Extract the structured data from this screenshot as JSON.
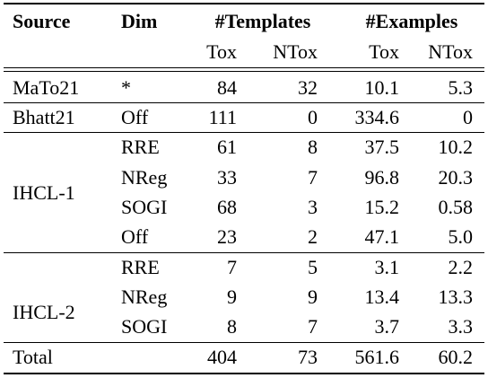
{
  "header": {
    "source": "Source",
    "dim": "Dim",
    "templates": "#Templates",
    "examples": "#Examples",
    "tox": "Tox",
    "ntox": "NTox"
  },
  "rows": [
    {
      "source": "MaTo21",
      "dim": "*",
      "t_tox": "84",
      "t_ntox": "32",
      "e_tox": "10.1",
      "e_ntox": "5.3"
    },
    {
      "source": "Bhatt21",
      "dim": "Off",
      "t_tox": "111",
      "t_ntox": "0",
      "e_tox": "334.6",
      "e_ntox": "0"
    },
    {
      "source": "IHCL-1",
      "dim": "RRE",
      "t_tox": "61",
      "t_ntox": "8",
      "e_tox": "37.5",
      "e_ntox": "10.2"
    },
    {
      "source": "",
      "dim": "NReg",
      "t_tox": "33",
      "t_ntox": "7",
      "e_tox": "96.8",
      "e_ntox": "20.3"
    },
    {
      "source": "",
      "dim": "SOGI",
      "t_tox": "68",
      "t_ntox": "3",
      "e_tox": "15.2",
      "e_ntox": "0.58"
    },
    {
      "source": "",
      "dim": "Off",
      "t_tox": "23",
      "t_ntox": "2",
      "e_tox": "47.1",
      "e_ntox": "5.0"
    },
    {
      "source": "IHCL-2",
      "dim": "RRE",
      "t_tox": "7",
      "t_ntox": "5",
      "e_tox": "3.1",
      "e_ntox": "2.2"
    },
    {
      "source": "",
      "dim": "NReg",
      "t_tox": "9",
      "t_ntox": "9",
      "e_tox": "13.4",
      "e_ntox": "13.3"
    },
    {
      "source": "",
      "dim": "SOGI",
      "t_tox": "8",
      "t_ntox": "7",
      "e_tox": "3.7",
      "e_ntox": "3.3"
    }
  ],
  "total": {
    "label": "Total",
    "t_tox": "404",
    "t_ntox": "73",
    "e_tox": "561.6",
    "e_ntox": "60.2"
  }
}
